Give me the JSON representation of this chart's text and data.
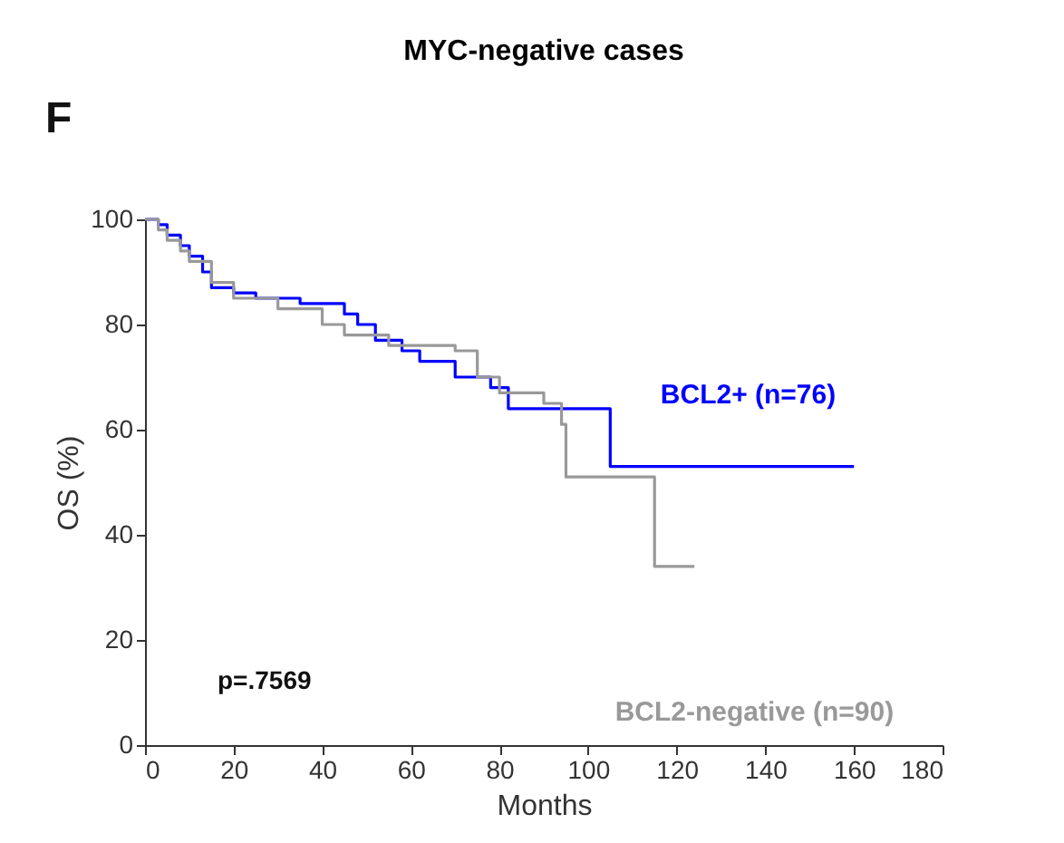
{
  "chart_data": {
    "type": "step",
    "title": "MYC-negative cases",
    "xlabel": "Months",
    "ylabel": "OS (%)",
    "annotations": [
      "F",
      "p=.7569"
    ],
    "xlim": [
      0,
      180
    ],
    "xticks": [
      0,
      20,
      40,
      60,
      80,
      100,
      120,
      140,
      160,
      180
    ],
    "ylim": [
      0,
      100
    ],
    "yticks": [
      0,
      20,
      40,
      60,
      80,
      100
    ],
    "grid": false,
    "marker": "none",
    "line_style": "solid",
    "series": [
      {
        "name": "BCL2+ (n=76)",
        "color": "#0000ff",
        "x": [
          0,
          3,
          5,
          8,
          10,
          13,
          15,
          20,
          25,
          35,
          45,
          48,
          52,
          58,
          62,
          70,
          78,
          82,
          105,
          160
        ],
        "values": [
          100,
          99,
          97,
          95,
          93,
          90,
          87,
          86,
          85,
          84,
          82,
          80,
          77,
          75,
          73,
          70,
          68,
          64,
          53,
          53
        ]
      },
      {
        "name": "BCL2-negative (n=90)",
        "color": "#999999",
        "x": [
          0,
          3,
          5,
          8,
          10,
          15,
          20,
          30,
          40,
          45,
          55,
          70,
          75,
          80,
          90,
          94,
          95,
          115,
          124
        ],
        "values": [
          100,
          98,
          96,
          94,
          92,
          88,
          85,
          83,
          80,
          78,
          76,
          75,
          70,
          67,
          65,
          61,
          51,
          34,
          34
        ]
      }
    ]
  }
}
